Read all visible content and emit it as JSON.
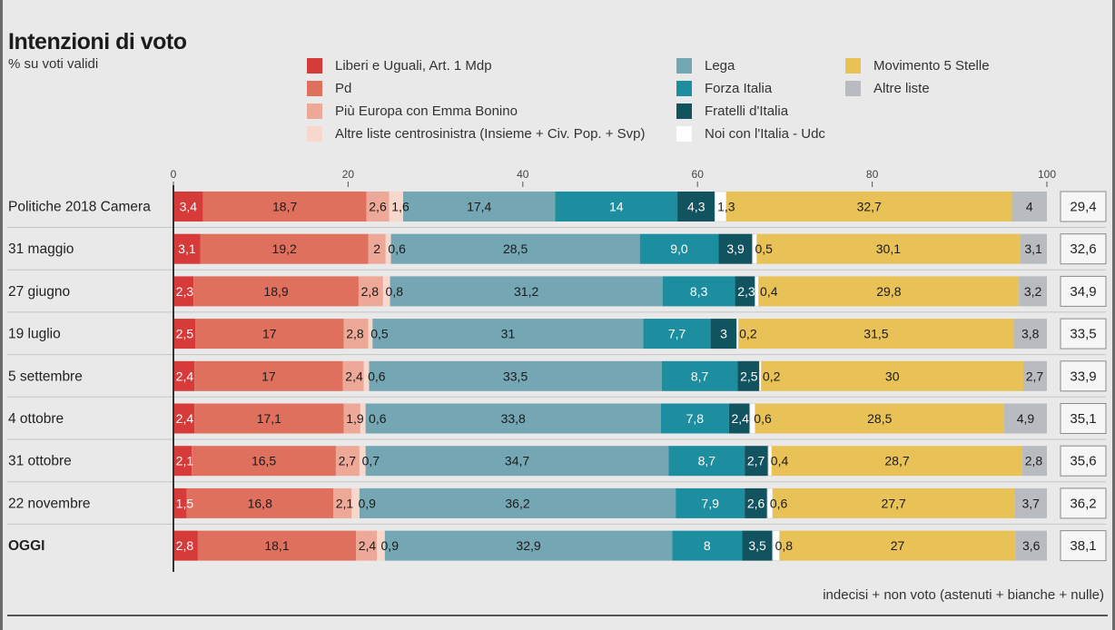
{
  "title": "Intenzioni di voto",
  "subtitle": "% su voti validi",
  "legend": [
    {
      "label": "Liberi e Uguali, Art. 1 Mdp",
      "color": "#d63b3a"
    },
    {
      "label": "Pd",
      "color": "#e0705e"
    },
    {
      "label": "Più Europa con Emma Bonino",
      "color": "#eea897"
    },
    {
      "label": "Altre liste centrosinistra (Insieme + Civ. Pop. + Svp)",
      "color": "#f8d8cc"
    },
    {
      "label": "Lega",
      "color": "#74a6b3"
    },
    {
      "label": "Forza Italia",
      "color": "#1d8ea0"
    },
    {
      "label": "Fratelli d'Italia",
      "color": "#11535f"
    },
    {
      "label": "Noi con l'Italia - Udc",
      "color": "#ffffff"
    },
    {
      "label": "Movimento 5 Stelle",
      "color": "#e8c257"
    },
    {
      "label": "Altre liste",
      "color": "#b8bcc0"
    }
  ],
  "footer_note": "indecisi + non voto (astenuti + bianche + nulle)",
  "chart_data": {
    "type": "bar",
    "orientation": "horizontal",
    "stacked": true,
    "xlim": [
      0,
      100
    ],
    "x_ticks": [
      "0",
      "20",
      "40",
      "60",
      "80",
      "100"
    ],
    "categories": [
      "Politiche 2018 Camera",
      "31 maggio",
      "27 giugno",
      "19 luglio",
      "5 settembre",
      "4 ottobre",
      "31 ottobre",
      "22 novembre",
      "OGGI"
    ],
    "series": [
      {
        "name": "Liberi e Uguali, Art. 1 Mdp",
        "values": [
          "3,4",
          "3,1",
          "2,3",
          "2,5",
          "2,4",
          "2,4",
          "2,1",
          "1,5",
          "2,8"
        ]
      },
      {
        "name": "Pd",
        "values": [
          "18,7",
          "19,2",
          "18,9",
          "17",
          "17",
          "17,1",
          "16,5",
          "16,8",
          "18,1"
        ]
      },
      {
        "name": "Più Europa con Emma Bonino",
        "values": [
          "2,6",
          "2",
          "2,8",
          "2,8",
          "2,4",
          "1,9",
          "2,7",
          "2,1",
          "2,4"
        ]
      },
      {
        "name": "Altre liste centrosinistra (Insieme + Civ. Pop. + Svp)",
        "values": [
          "1,6",
          "0,6",
          "0,8",
          "0,5",
          "0,6",
          "0,6",
          "0,7",
          "0,9",
          "0,9"
        ]
      },
      {
        "name": "Lega",
        "values": [
          "17,4",
          "28,5",
          "31,2",
          "31",
          "33,5",
          "33,8",
          "34,7",
          "36,2",
          "32,9"
        ]
      },
      {
        "name": "Forza Italia",
        "values": [
          "14",
          "9,0",
          "8,3",
          "7,7",
          "8,7",
          "7,8",
          "8,7",
          "7,9",
          "8"
        ]
      },
      {
        "name": "Fratelli d'Italia",
        "values": [
          "4,3",
          "3,9",
          "2,3",
          "3",
          "2,5",
          "2,4",
          "2,7",
          "2,6",
          "3,5"
        ]
      },
      {
        "name": "Noi con l'Italia - Udc",
        "values": [
          "1,3",
          "0,5",
          "0,4",
          "0,2",
          "0,2",
          "0,6",
          "0,4",
          "0,6",
          "0,8"
        ]
      },
      {
        "name": "Movimento 5 Stelle",
        "values": [
          "32,7",
          "30,1",
          "29,8",
          "31,5",
          "30",
          "28,5",
          "28,7",
          "27,7",
          "27"
        ]
      },
      {
        "name": "Altre liste",
        "values": [
          "4",
          "3,1",
          "3,2",
          "3,8",
          "2,7",
          "4,9",
          "2,8",
          "3,7",
          "3,6"
        ]
      }
    ],
    "indecisi_non_voto": [
      "29,4",
      "32,6",
      "34,9",
      "33,5",
      "33,9",
      "35,1",
      "35,6",
      "36,2",
      "38,1"
    ]
  }
}
